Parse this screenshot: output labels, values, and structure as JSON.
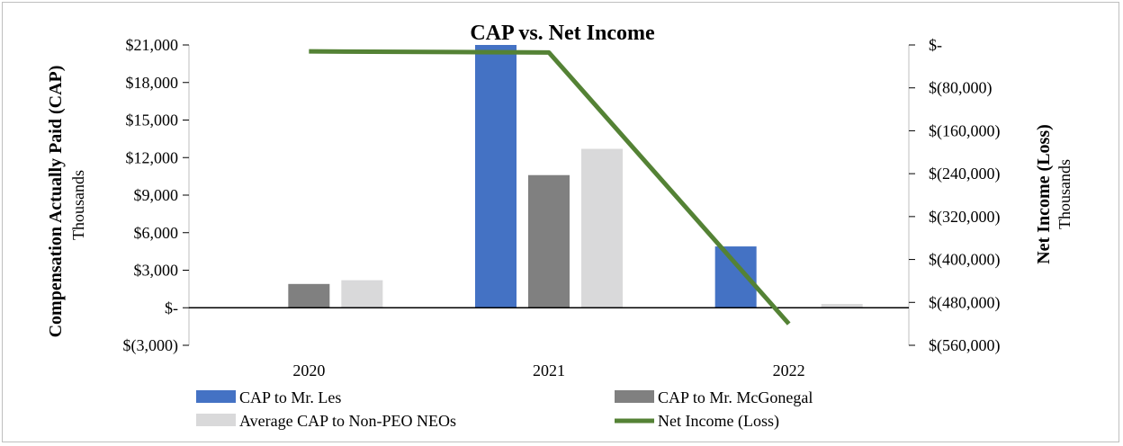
{
  "chart_data": {
    "type": "bar",
    "title": "CAP vs. Net Income",
    "categories": [
      "2020",
      "2021",
      "2022"
    ],
    "left_axis": {
      "label": "Compensation Actually Paid (CAP)",
      "unit": "Thousands",
      "range": [
        -3000,
        21000
      ],
      "ticks": [
        -3000,
        0,
        3000,
        6000,
        9000,
        12000,
        15000,
        18000,
        21000
      ],
      "tick_labels": [
        "$(3,000)",
        "$-",
        "$3,000",
        "$6,000",
        "$9,000",
        "$12,000",
        "$15,000",
        "$18,000",
        "$21,000"
      ]
    },
    "right_axis": {
      "label": "Net Income (Loss)",
      "unit": "Thousands",
      "range": [
        -560000,
        0
      ],
      "ticks": [
        0,
        -80000,
        -160000,
        -240000,
        -320000,
        -400000,
        -480000,
        -560000
      ],
      "tick_labels": [
        "$-",
        "$(80,000)",
        "$(160,000)",
        "$(240,000)",
        "$(320,000)",
        "$(400,000)",
        "$(480,000)",
        "$(560,000)"
      ]
    },
    "series": [
      {
        "name": "CAP to Mr. Les",
        "kind": "bar",
        "axis": "left",
        "color": "#4472c4",
        "values": [
          0,
          21000,
          4900
        ]
      },
      {
        "name": "CAP to Mr. McGonegal",
        "kind": "bar",
        "axis": "left",
        "color": "#808080",
        "values": [
          1900,
          10600,
          0
        ]
      },
      {
        "name": "Average CAP to Non-PEO NEOs",
        "kind": "bar",
        "axis": "left",
        "color": "#d9d9da",
        "values": [
          2200,
          12700,
          300
        ]
      },
      {
        "name": "Net Income (Loss)",
        "kind": "line",
        "axis": "right",
        "color": "#548235",
        "values": [
          -12000,
          -14000,
          -520000
        ]
      }
    ],
    "grid": false,
    "legend_position": "bottom"
  }
}
